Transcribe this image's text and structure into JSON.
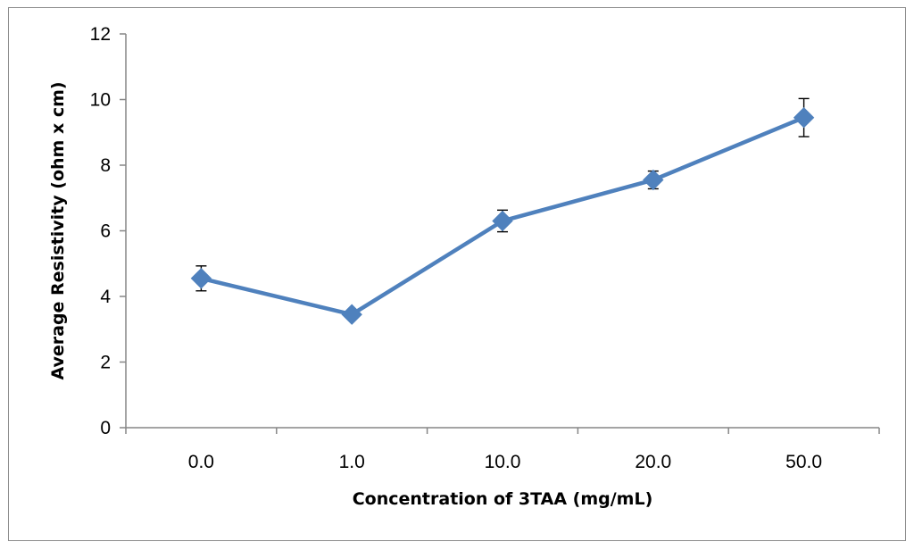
{
  "chart_data": {
    "type": "line",
    "title": "",
    "xlabel": "Concentration of 3TAA (mg/mL)",
    "ylabel": "Average Resistivity (ohm x cm)",
    "categories": [
      "0.0",
      "1.0",
      "10.0",
      "20.0",
      "50.0"
    ],
    "series": [
      {
        "name": "Average Resistivity",
        "values": [
          4.55,
          3.45,
          6.3,
          7.55,
          9.45
        ],
        "error": [
          0.38,
          0.12,
          0.33,
          0.27,
          0.58
        ],
        "color": "#4f81bd",
        "marker": "diamond"
      }
    ],
    "ylim": [
      0,
      12
    ],
    "yticks": [
      0,
      2,
      4,
      6,
      8,
      10,
      12
    ],
    "grid": false,
    "legend": "none"
  }
}
